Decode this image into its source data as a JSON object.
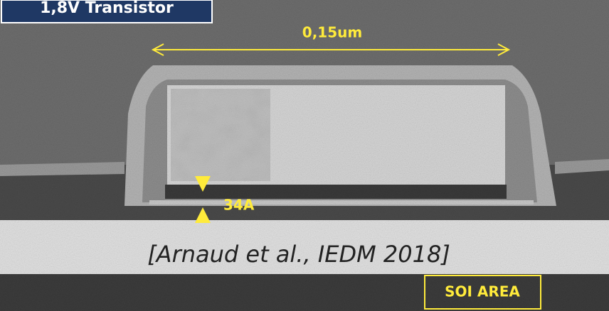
{
  "labels": {
    "title": "1,8V Transistor",
    "gate_length": "0,15um",
    "oxide_thickness": "34A",
    "citation": "[Arnaud et al., IEDM 2018]",
    "region": "SOI AREA"
  }
}
